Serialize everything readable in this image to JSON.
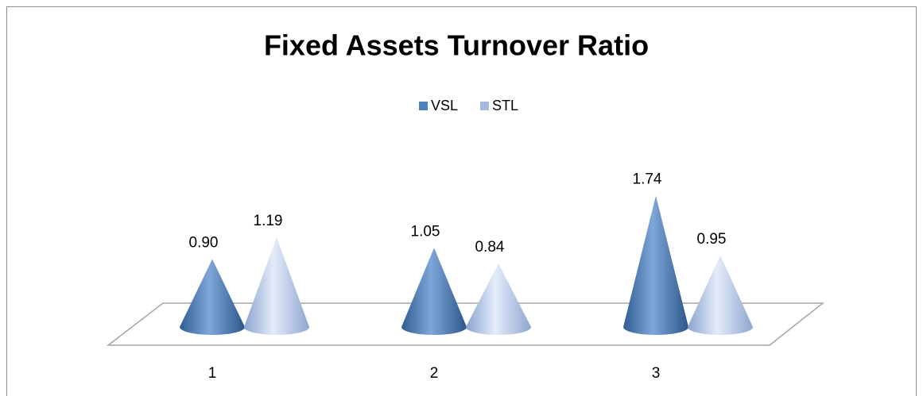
{
  "chart_data": {
    "type": "cone",
    "title": "Fixed Assets Turnover Ratio",
    "categories": [
      "1",
      "2",
      "3"
    ],
    "series": [
      {
        "name": "VSL",
        "color": "#4f81bd",
        "values": [
          0.9,
          1.05,
          1.74
        ],
        "value_labels": [
          "0.90",
          "1.05",
          "1.74"
        ]
      },
      {
        "name": "STL",
        "color": "#a6b9de",
        "values": [
          1.19,
          0.84,
          0.95
        ],
        "value_labels": [
          "1.19",
          "0.84",
          "0.95"
        ]
      }
    ],
    "legend": "top"
  }
}
